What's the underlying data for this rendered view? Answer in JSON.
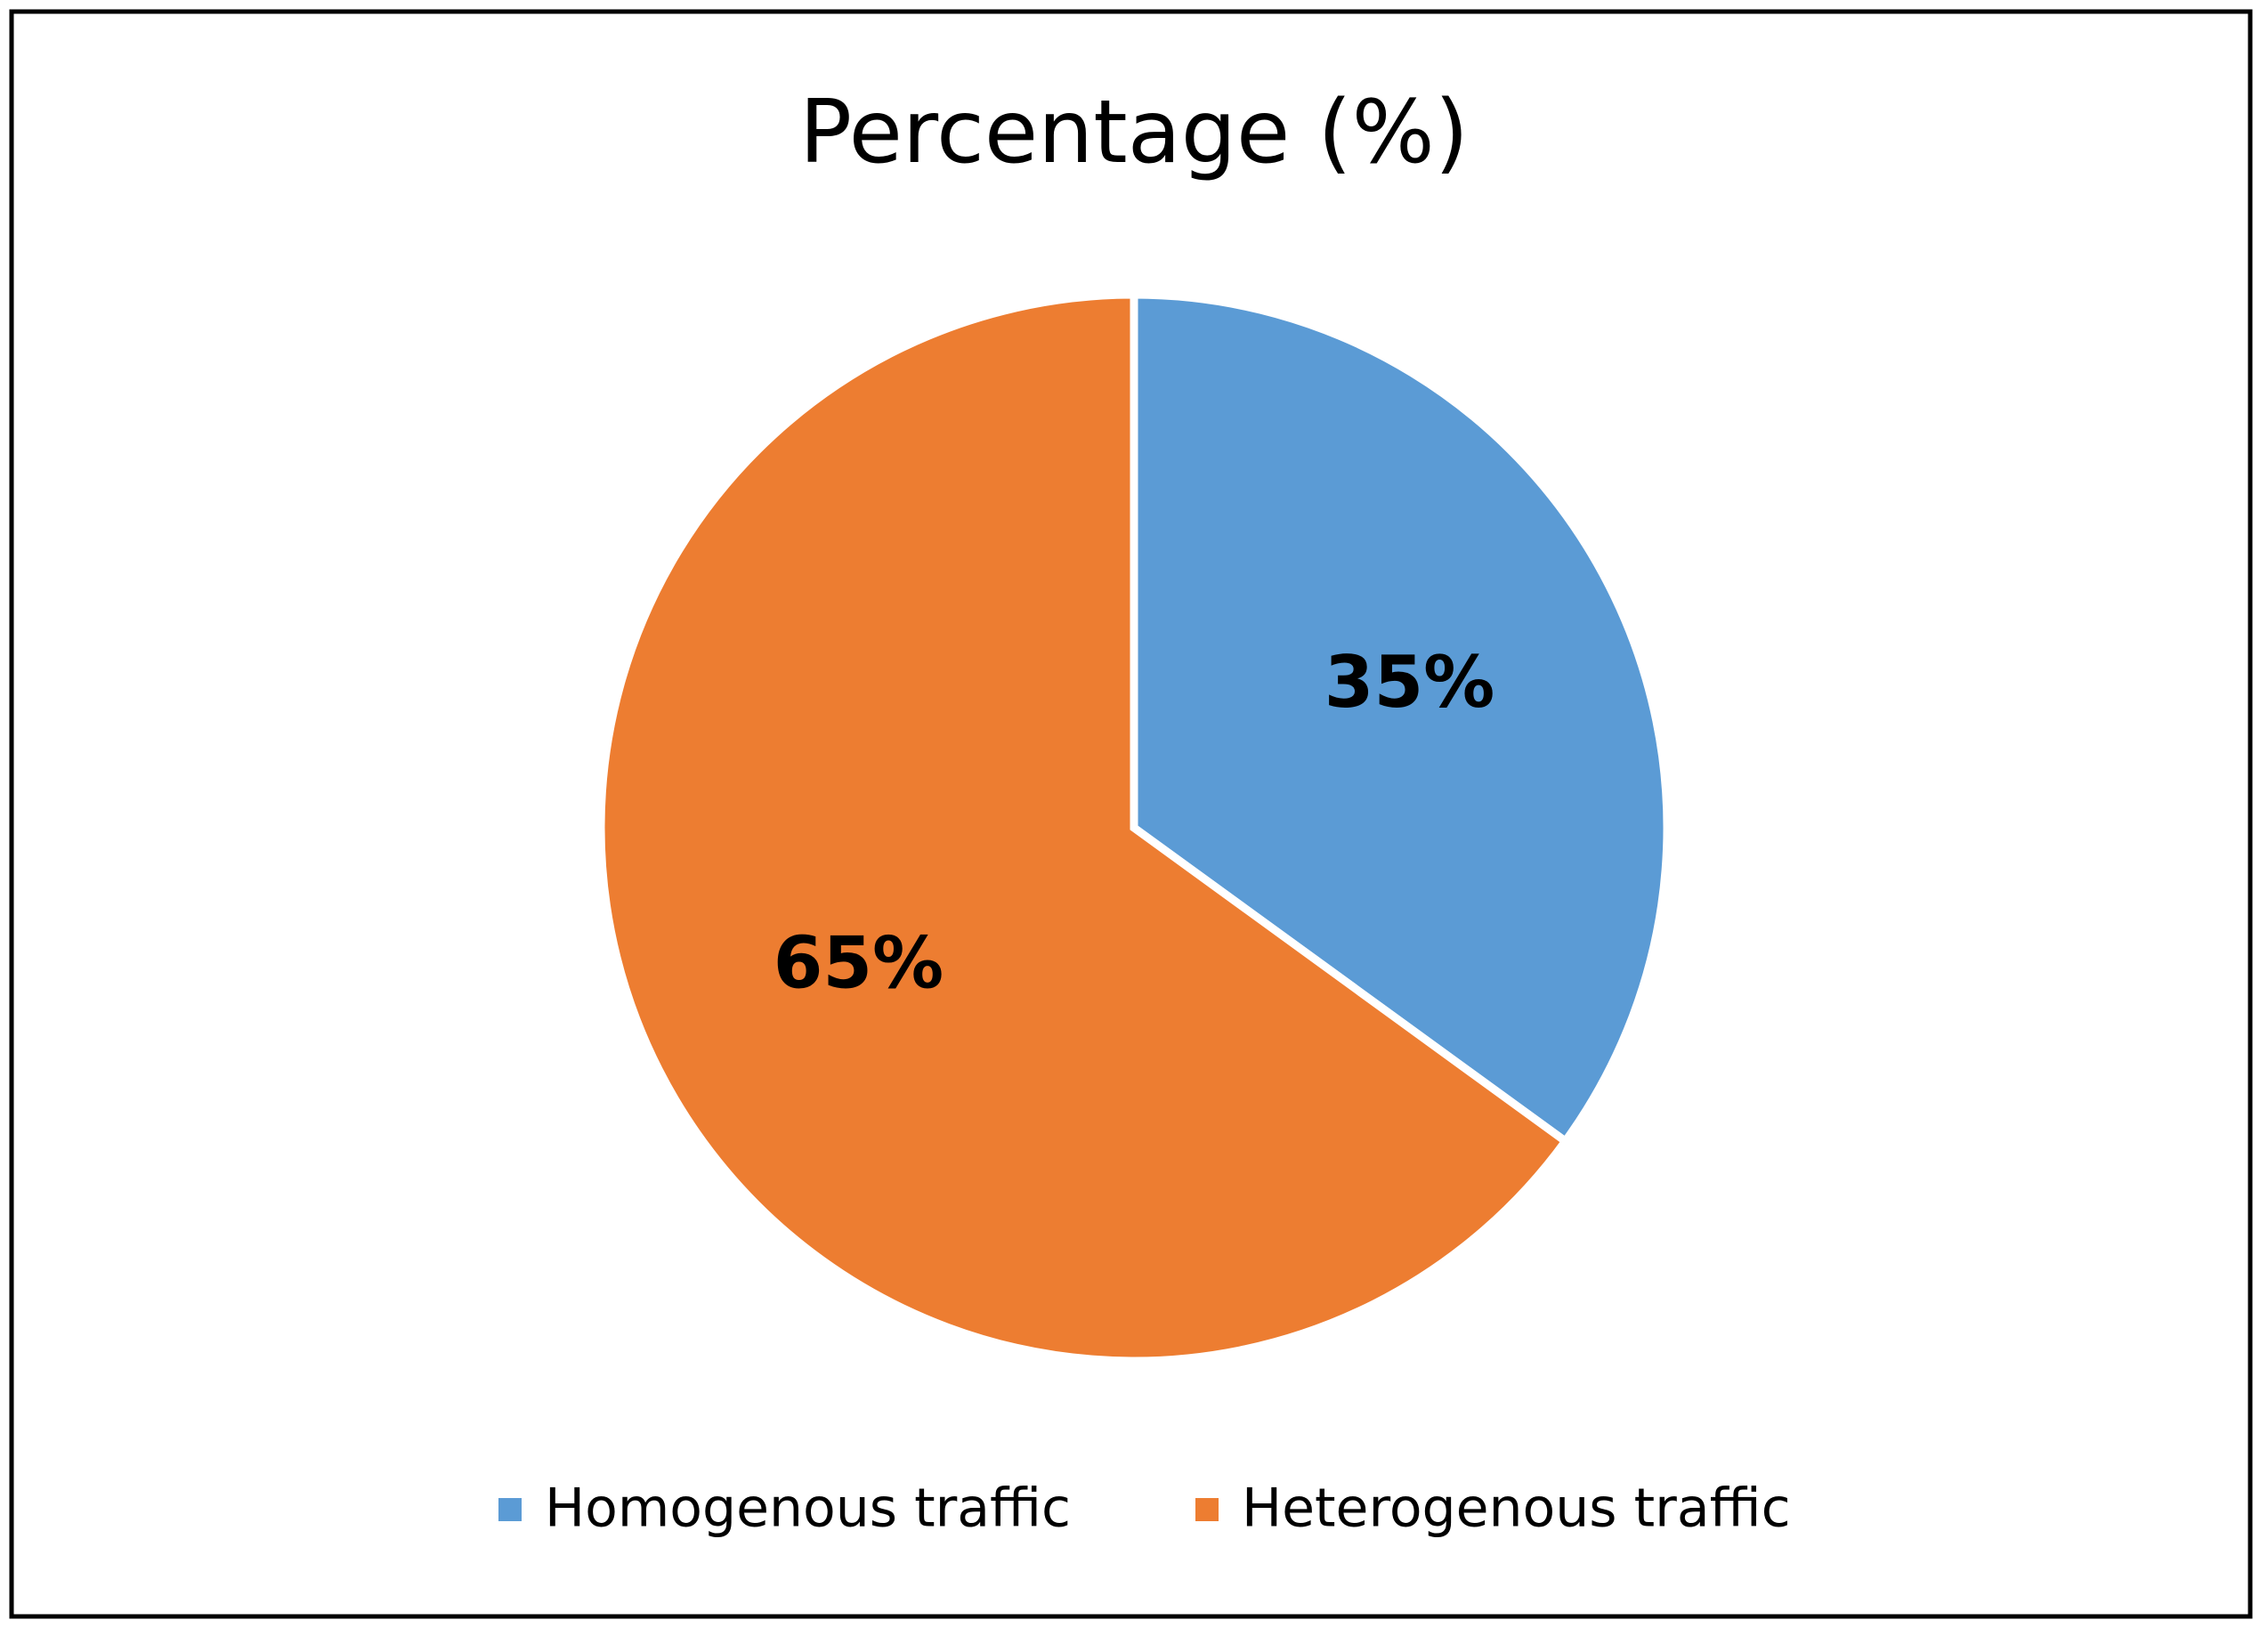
{
  "chart_data": {
    "type": "pie",
    "title": "Percentage (%)",
    "categories": [
      "Homogenous traffic",
      "Heterogenous traffic"
    ],
    "values": [
      35,
      65
    ],
    "value_labels": [
      "35%",
      "65%"
    ],
    "colors": [
      "#5b9bd5",
      "#ed7d31"
    ],
    "legend": "bottom"
  }
}
